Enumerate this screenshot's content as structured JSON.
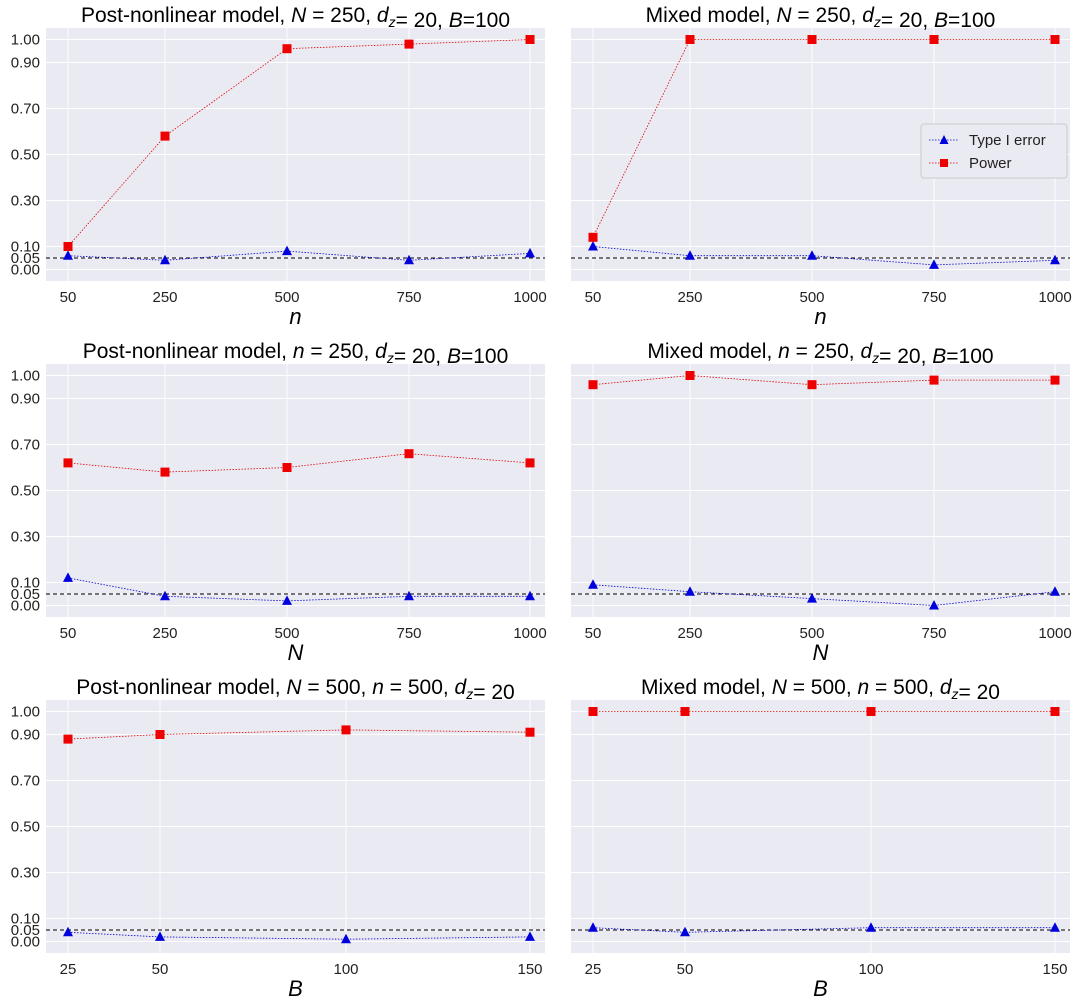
{
  "colors": {
    "type1": "#0000dd",
    "power": "#ee0000",
    "panel_bg": "#eaeaf2"
  },
  "legend": {
    "type1": "Type I error",
    "power": "Power"
  },
  "chart_data": [
    {
      "type": "line",
      "title": {
        "prefix": "Post-nonlinear model, ",
        "parts": [
          [
            "N",
            "i"
          ],
          [
            " = 250, ",
            ""
          ],
          [
            "d",
            "i"
          ],
          [
            "z",
            "sub"
          ],
          [
            "= 20, ",
            ""
          ],
          [
            "B",
            "i"
          ],
          [
            "=100",
            ""
          ]
        ]
      },
      "xlabel": "n",
      "x": [
        50,
        250,
        500,
        750,
        1000
      ],
      "xticks": [
        "50",
        "250",
        "500",
        "750",
        "1000"
      ],
      "ylim": [
        -0.05,
        1.05
      ],
      "yticks": [
        "0.00",
        "0.05",
        "0.10",
        "0.30",
        "0.50",
        "0.70",
        "0.90",
        "1.00"
      ],
      "reference_line": 0.05,
      "series": [
        {
          "name": "Type I error",
          "marker": "triangle",
          "values": [
            0.06,
            0.04,
            0.08,
            0.04,
            0.07
          ]
        },
        {
          "name": "Power",
          "marker": "square",
          "values": [
            0.1,
            0.58,
            0.96,
            0.98,
            1.0
          ]
        }
      ]
    },
    {
      "type": "line",
      "title": {
        "prefix": "Mixed model, ",
        "parts": [
          [
            "N",
            "i"
          ],
          [
            " = 250, ",
            ""
          ],
          [
            "d",
            "i"
          ],
          [
            "z",
            "sub"
          ],
          [
            "= 20, ",
            ""
          ],
          [
            "B",
            "i"
          ],
          [
            "=100",
            ""
          ]
        ]
      },
      "xlabel": "n",
      "x": [
        50,
        250,
        500,
        750,
        1000
      ],
      "xticks": [
        "50",
        "250",
        "500",
        "750",
        "1000"
      ],
      "ylim": [
        -0.05,
        1.05
      ],
      "yticks": [
        "0.00",
        "0.05",
        "0.10",
        "0.30",
        "0.50",
        "0.70",
        "0.90",
        "1.00"
      ],
      "reference_line": 0.05,
      "legend": "right",
      "series": [
        {
          "name": "Type I error",
          "marker": "triangle",
          "values": [
            0.1,
            0.06,
            0.06,
            0.02,
            0.04
          ]
        },
        {
          "name": "Power",
          "marker": "square",
          "values": [
            0.14,
            1.0,
            1.0,
            1.0,
            1.0
          ]
        }
      ]
    },
    {
      "type": "line",
      "title": {
        "prefix": "Post-nonlinear model, ",
        "parts": [
          [
            "n",
            "i"
          ],
          [
            " = 250, ",
            ""
          ],
          [
            "d",
            "i"
          ],
          [
            "z",
            "sub"
          ],
          [
            "= 20, ",
            ""
          ],
          [
            "B",
            "i"
          ],
          [
            "=100",
            ""
          ]
        ]
      },
      "xlabel": "N",
      "x": [
        50,
        250,
        500,
        750,
        1000
      ],
      "xticks": [
        "50",
        "250",
        "500",
        "750",
        "1000"
      ],
      "ylim": [
        -0.05,
        1.05
      ],
      "yticks": [
        "0.00",
        "0.05",
        "0.10",
        "0.30",
        "0.50",
        "0.70",
        "0.90",
        "1.00"
      ],
      "reference_line": 0.05,
      "series": [
        {
          "name": "Type I error",
          "marker": "triangle",
          "values": [
            0.12,
            0.04,
            0.02,
            0.04,
            0.04
          ]
        },
        {
          "name": "Power",
          "marker": "square",
          "values": [
            0.62,
            0.58,
            0.6,
            0.66,
            0.62
          ]
        }
      ]
    },
    {
      "type": "line",
      "title": {
        "prefix": "Mixed model, ",
        "parts": [
          [
            "n",
            "i"
          ],
          [
            " = 250, ",
            ""
          ],
          [
            "d",
            "i"
          ],
          [
            "z",
            "sub"
          ],
          [
            "= 20, ",
            ""
          ],
          [
            "B",
            "i"
          ],
          [
            "=100",
            ""
          ]
        ]
      },
      "xlabel": "N",
      "x": [
        50,
        250,
        500,
        750,
        1000
      ],
      "xticks": [
        "50",
        "250",
        "500",
        "750",
        "1000"
      ],
      "ylim": [
        -0.05,
        1.05
      ],
      "yticks": [
        "0.00",
        "0.05",
        "0.10",
        "0.30",
        "0.50",
        "0.70",
        "0.90",
        "1.00"
      ],
      "reference_line": 0.05,
      "series": [
        {
          "name": "Type I error",
          "marker": "triangle",
          "values": [
            0.09,
            0.06,
            0.03,
            0.0,
            0.06
          ]
        },
        {
          "name": "Power",
          "marker": "square",
          "values": [
            0.96,
            1.0,
            0.96,
            0.98,
            0.98
          ]
        }
      ]
    },
    {
      "type": "line",
      "title": {
        "prefix": "Post-nonlinear model, ",
        "parts": [
          [
            "N",
            "i"
          ],
          [
            " = 500, ",
            ""
          ],
          [
            "n",
            "i"
          ],
          [
            " = 500, ",
            ""
          ],
          [
            "d",
            "i"
          ],
          [
            "z",
            "sub"
          ],
          [
            "= 20",
            ""
          ]
        ]
      },
      "xlabel": "B",
      "x": [
        25,
        50,
        100,
        150
      ],
      "xticks": [
        "25",
        "50",
        "100",
        "150"
      ],
      "ylim": [
        -0.05,
        1.05
      ],
      "yticks": [
        "0.00",
        "0.05",
        "0.10",
        "0.30",
        "0.50",
        "0.70",
        "0.90",
        "1.00"
      ],
      "reference_line": 0.05,
      "series": [
        {
          "name": "Type I error",
          "marker": "triangle",
          "values": [
            0.04,
            0.02,
            0.01,
            0.02
          ]
        },
        {
          "name": "Power",
          "marker": "square",
          "values": [
            0.88,
            0.9,
            0.92,
            0.91
          ]
        }
      ]
    },
    {
      "type": "line",
      "title": {
        "prefix": "Mixed model, ",
        "parts": [
          [
            "N",
            "i"
          ],
          [
            " = 500, ",
            ""
          ],
          [
            "n",
            "i"
          ],
          [
            " = 500, ",
            ""
          ],
          [
            "d",
            "i"
          ],
          [
            "z",
            "sub"
          ],
          [
            "= 20",
            ""
          ]
        ]
      },
      "xlabel": "B",
      "x": [
        25,
        50,
        100,
        150
      ],
      "xticks": [
        "25",
        "50",
        "100",
        "150"
      ],
      "ylim": [
        -0.05,
        1.05
      ],
      "yticks": [
        "0.00",
        "0.05",
        "0.10",
        "0.30",
        "0.50",
        "0.70",
        "0.90",
        "1.00"
      ],
      "reference_line": 0.05,
      "series": [
        {
          "name": "Type I error",
          "marker": "triangle",
          "values": [
            0.06,
            0.04,
            0.06,
            0.06
          ]
        },
        {
          "name": "Power",
          "marker": "square",
          "values": [
            1.0,
            1.0,
            1.0,
            1.0
          ]
        }
      ]
    }
  ]
}
